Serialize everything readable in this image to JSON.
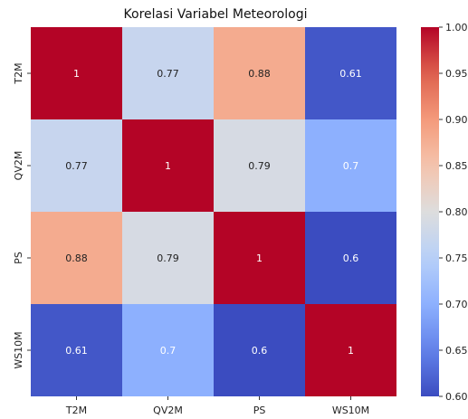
{
  "chart_data": {
    "type": "heatmap",
    "title": "Korelasi Variabel Meteorologi",
    "xlabel": "",
    "ylabel": "",
    "rows": [
      "T2M",
      "QV2M",
      "PS",
      "WS10M"
    ],
    "cols": [
      "T2M",
      "QV2M",
      "PS",
      "WS10M"
    ],
    "values": [
      [
        1,
        0.77,
        0.88,
        0.61
      ],
      [
        0.77,
        1,
        0.79,
        0.7
      ],
      [
        0.88,
        0.79,
        1,
        0.6
      ],
      [
        0.61,
        0.7,
        0.6,
        1
      ]
    ],
    "cell_labels": [
      [
        "1",
        "0.77",
        "0.88",
        "0.61"
      ],
      [
        "0.77",
        "1",
        "0.79",
        "0.7"
      ],
      [
        "0.88",
        "0.79",
        "1",
        "0.6"
      ],
      [
        "0.61",
        "0.7",
        "0.6",
        "1"
      ]
    ],
    "colormap": "coolwarm",
    "vmin": 0.6,
    "vmax": 1.0,
    "colorbar_ticks": [
      "0.60",
      "0.65",
      "0.70",
      "0.75",
      "0.80",
      "0.85",
      "0.90",
      "0.95",
      "1.00"
    ],
    "colorbar_placement": "right",
    "grid": false,
    "colors": {
      "low": "#3b4cc0",
      "mid": "#dddddd",
      "high": "#b40426"
    }
  }
}
